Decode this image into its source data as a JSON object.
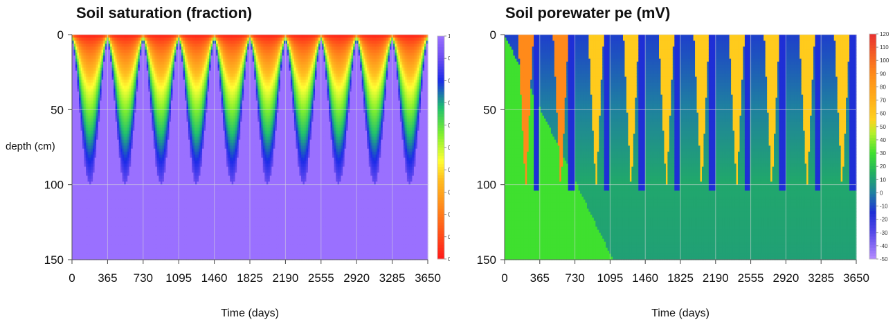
{
  "chart_data": [
    {
      "type": "heatmap",
      "title": "Soil saturation (fraction)",
      "xlabel": "Time (days)",
      "ylabel": "depth (cm)",
      "xlim": [
        0,
        3650
      ],
      "ylim": [
        150,
        0
      ],
      "x_ticks": [
        "0",
        "365",
        "730",
        "1095",
        "1460",
        "1825",
        "2190",
        "2555",
        "2920",
        "3285",
        "3650"
      ],
      "y_ticks": [
        "0",
        "50",
        "100",
        "150"
      ],
      "colorbar": {
        "min": 0.5,
        "max": 1.0,
        "ticks": [
          "0.50",
          "0.55",
          "0.60",
          "0.65",
          "0.70",
          "0.75",
          "0.80",
          "0.85",
          "0.90",
          "0.95",
          "1.00"
        ],
        "stops": [
          {
            "value": 0.5,
            "color": "#ff1a1a"
          },
          {
            "value": 0.6,
            "color": "#ff7a1a"
          },
          {
            "value": 0.68,
            "color": "#ffc020"
          },
          {
            "value": 0.72,
            "color": "#ffff33"
          },
          {
            "value": 0.78,
            "color": "#7fef2f"
          },
          {
            "value": 0.84,
            "color": "#1fbf6f"
          },
          {
            "value": 0.9,
            "color": "#1b2be8"
          },
          {
            "value": 0.95,
            "color": "#6a4cf0"
          },
          {
            "value": 1.0,
            "color": "#9a70ff"
          }
        ]
      },
      "cycle_days": 365,
      "wetting_front_max_depth_cm": 100,
      "wetting_front_min_depth_cm": 5
    },
    {
      "type": "heatmap",
      "title": "Soil porewater pe (mV)",
      "xlabel": "Time (days)",
      "ylabel": "",
      "xlim": [
        0,
        3650
      ],
      "ylim": [
        150,
        0
      ],
      "x_ticks": [
        "0",
        "365",
        "730",
        "1095",
        "1460",
        "1825",
        "2190",
        "2555",
        "2920",
        "3285",
        "3650"
      ],
      "y_ticks": [
        "0",
        "50",
        "100",
        "150"
      ],
      "colorbar": {
        "min": -50,
        "max": 120,
        "ticks": [
          "120",
          "110",
          "100",
          "90",
          "80",
          "70",
          "60",
          "50",
          "40",
          "30",
          "20",
          "10",
          "0",
          "-10",
          "-20",
          "-30",
          "-40",
          "-50"
        ],
        "stops": [
          {
            "value": -50,
            "color": "#b58cff"
          },
          {
            "value": -30,
            "color": "#5548e8"
          },
          {
            "value": -15,
            "color": "#1e2fd6"
          },
          {
            "value": 0,
            "color": "#1f80a0"
          },
          {
            "value": 15,
            "color": "#22b060"
          },
          {
            "value": 30,
            "color": "#3fe02f"
          },
          {
            "value": 45,
            "color": "#b4f02a"
          },
          {
            "value": 55,
            "color": "#ffd21e"
          },
          {
            "value": 70,
            "color": "#ffb01a"
          },
          {
            "value": 90,
            "color": "#ff8a1a"
          },
          {
            "value": 120,
            "color": "#e83030"
          }
        ]
      },
      "cycle_days": 365,
      "oxic_wedge_max_depth_cm": 105
    }
  ]
}
